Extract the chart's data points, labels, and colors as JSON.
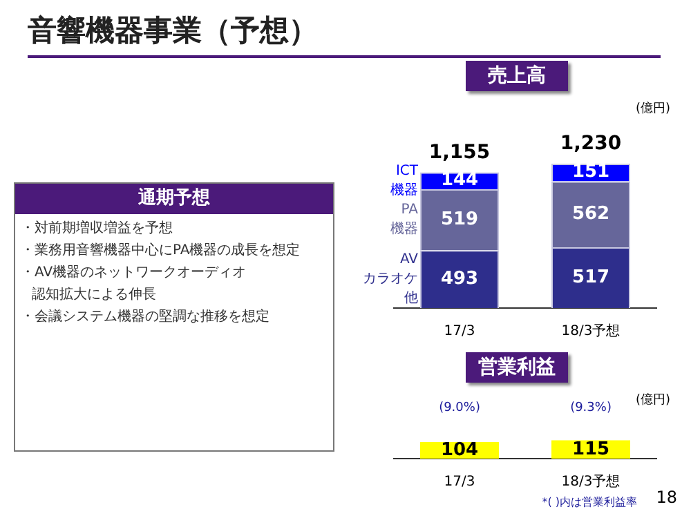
{
  "chart_data": [
    {
      "type": "other",
      "title": "音響機器事業（予想）",
      "annotations": [
        "18"
      ]
    },
    {
      "type": "other",
      "title": "通期予想",
      "annotations": [
        "・対前期増収増益を予想",
        "・業務用音響機器中心にPA機器の成長を想定",
        "・AV機器のネットワークオーディオ",
        "認知拡大による伸長",
        "・会議システム機器の堅調な推移を想定"
      ]
    },
    {
      "type": "bar",
      "title": "売上高",
      "categories": [
        "17/3",
        "18/3予想"
      ],
      "stacked": true,
      "data_labels": true,
      "totals": [
        "1,155",
        "1,230"
      ],
      "annotations": [
        "(億円)"
      ],
      "series": [
        {
          "name": "AVカラオケ他",
          "color": "#2e2e8c",
          "values": [
            493,
            517
          ]
        },
        {
          "name": "PA機器",
          "color": "#66669a",
          "values": [
            519,
            562
          ]
        },
        {
          "name": "ICT機器",
          "color": "#0000ff",
          "values": [
            144,
            151
          ]
        }
      ]
    },
    {
      "type": "bar",
      "title": "営業利益",
      "categories": [
        "17/3",
        "18/3予想"
      ],
      "values": [
        104,
        115
      ],
      "color": "#ffff00",
      "data_labels": true,
      "annotations": [
        "(億円)",
        "*( )内は営業利益率",
        "(9.0%)",
        "(9.3%)"
      ]
    }
  ]
}
